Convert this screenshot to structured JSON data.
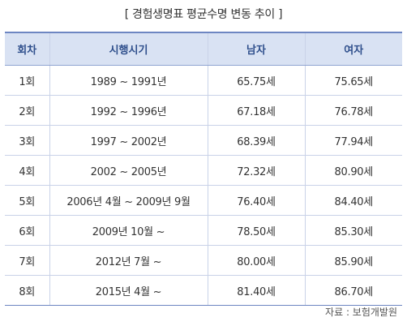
{
  "title": "[ 경험생명표 평균수명 변동 추이 ]",
  "columns": [
    "회차",
    "시행시기",
    "남자",
    "여자"
  ],
  "rows": [
    [
      "1회",
      "1989 ~ 1991년",
      "65.75세",
      "75.65세"
    ],
    [
      "2회",
      "1992 ~ 1996년",
      "67.18세",
      "76.78세"
    ],
    [
      "3회",
      "1997 ~ 2002년",
      "68.39세",
      "77.94세"
    ],
    [
      "4회",
      "2002 ~ 2005년",
      "72.32세",
      "80.90세"
    ],
    [
      "5회",
      "2006년 4월 ~ 2009년 9월",
      "76.40세",
      "84.40세"
    ],
    [
      "6회",
      "2009년 10월 ~",
      "78.50세",
      "85.30세"
    ],
    [
      "7회",
      "2012년 7월 ~",
      "80.00세",
      "85.90세"
    ],
    [
      "8회",
      "2015년 4월 ~",
      "81.40세",
      "86.70세"
    ]
  ],
  "source": "자료 : 보험개발원"
}
